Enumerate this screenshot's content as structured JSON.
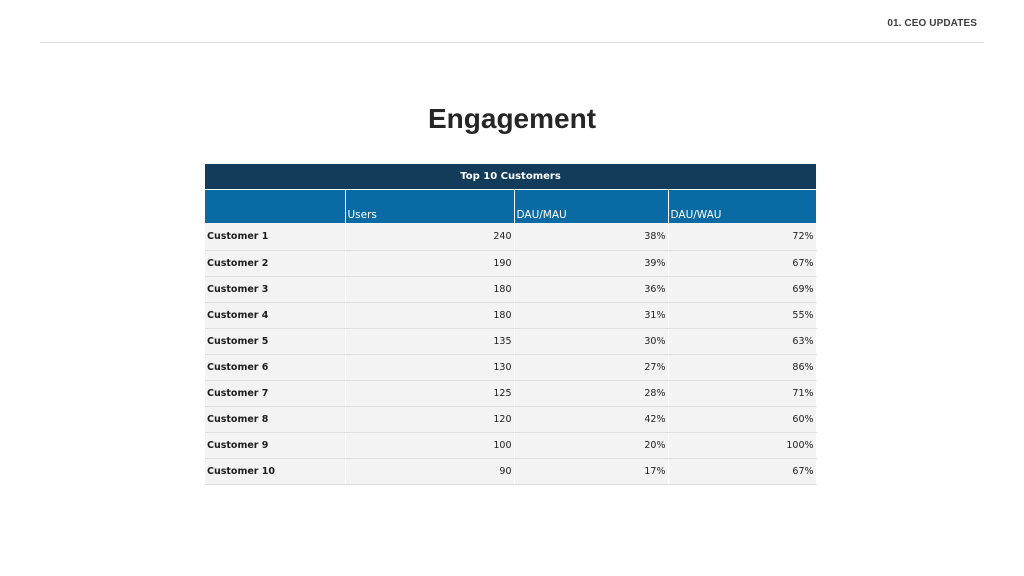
{
  "header": {
    "section_label": "01. CEO UPDATES"
  },
  "page": {
    "title": "Engagement"
  },
  "table": {
    "title": "Top 10 Customers",
    "columns": [
      "",
      "Users",
      "DAU/MAU",
      "DAU/WAU"
    ],
    "rows": [
      [
        "Customer 1",
        "240",
        "38%",
        "72%"
      ],
      [
        "Customer 2",
        "190",
        "39%",
        "67%"
      ],
      [
        "Customer 3",
        "180",
        "36%",
        "69%"
      ],
      [
        "Customer 4",
        "180",
        "31%",
        "55%"
      ],
      [
        "Customer 5",
        "135",
        "30%",
        "63%"
      ],
      [
        "Customer 6",
        "130",
        "27%",
        "86%"
      ],
      [
        "Customer 7",
        "125",
        "28%",
        "71%"
      ],
      [
        "Customer 8",
        "120",
        "42%",
        "60%"
      ],
      [
        "Customer 9",
        "100",
        "20%",
        "100%"
      ],
      [
        "Customer 10",
        "90",
        "17%",
        "67%"
      ]
    ]
  },
  "colors": {
    "title_bar": "#123c5a",
    "header_bar": "#0a6aa3",
    "row_bg": "#f3f3f3"
  }
}
